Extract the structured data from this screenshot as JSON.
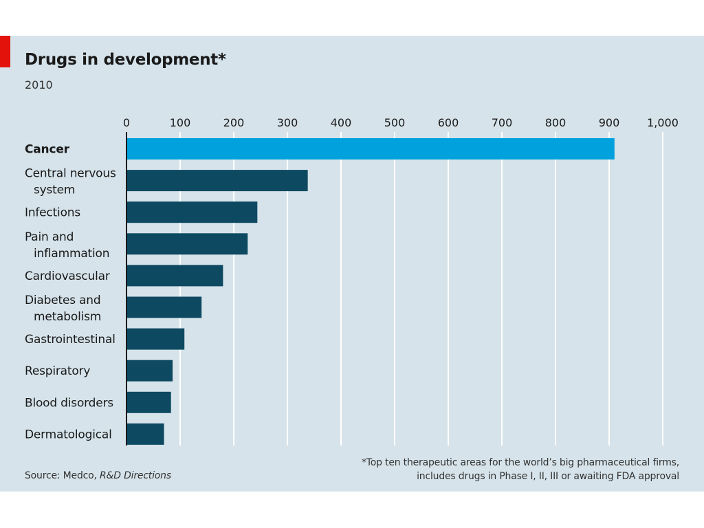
{
  "title": "Drugs in development*",
  "subtitle": "2010",
  "footnote_line1": "*Top ten therapeutic areas for the world’s big pharmaceutical firms,",
  "footnote_line2": "includes drugs in Phase I, II, III or awaiting FDA approval",
  "source_prefix": "Source: Medco, ",
  "source_italic": "R&D Directions",
  "colors": {
    "background": "#d6e3ea",
    "bar": "#0d4a62",
    "highlight_bar": "#00a1dc",
    "gridline": "#ffffff",
    "brand_tab": "#e3120b"
  },
  "chart_data": {
    "type": "bar",
    "orientation": "horizontal",
    "categories": [
      [
        "Cancer"
      ],
      [
        "Central nervous",
        "system"
      ],
      [
        "Infections"
      ],
      [
        "Pain and",
        "inflammation"
      ],
      [
        "Cardiovascular"
      ],
      [
        "Diabetes and",
        "metabolism"
      ],
      [
        "Gastrointestinal"
      ],
      [
        "Respiratory"
      ],
      [
        "Blood disorders"
      ],
      [
        "Dermatological"
      ]
    ],
    "values": [
      910,
      338,
      244,
      226,
      180,
      140,
      108,
      86,
      83,
      70
    ],
    "highlight_index": 0,
    "xlim": [
      0,
      1000
    ],
    "xticks": [
      0,
      100,
      200,
      300,
      400,
      500,
      600,
      700,
      800,
      900,
      1000
    ],
    "xtick_labels": [
      "0",
      "100",
      "200",
      "300",
      "400",
      "500",
      "600",
      "700",
      "800",
      "900",
      "1,000"
    ],
    "x_axis_position": "top",
    "grid": true
  }
}
